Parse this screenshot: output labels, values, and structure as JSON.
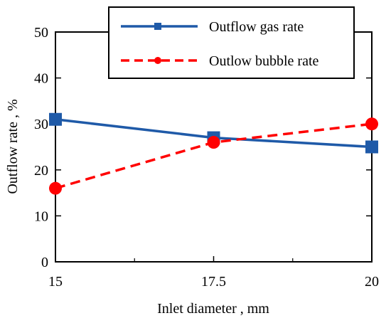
{
  "chart_data": {
    "type": "line",
    "x": [
      15,
      17.5,
      20
    ],
    "xlabel": "Inlet diameter , mm",
    "ylabel": "Outflow rate , %",
    "xlim": [
      15,
      20
    ],
    "ylim": [
      0,
      50
    ],
    "xticks": [
      "15",
      "17.5",
      "20"
    ],
    "yticks": [
      "0",
      "10",
      "20",
      "30",
      "40",
      "50"
    ],
    "grid": false,
    "legend_position": "top-right",
    "series": [
      {
        "name": "Outflow gas rate",
        "values": [
          31,
          27,
          25
        ],
        "color": "#1f5aa8",
        "line_style": "solid",
        "marker": "square"
      },
      {
        "name": "Outlow bubble rate",
        "values": [
          16,
          26,
          30
        ],
        "color": "#ff0000",
        "line_style": "dashed",
        "marker": "circle"
      }
    ]
  }
}
